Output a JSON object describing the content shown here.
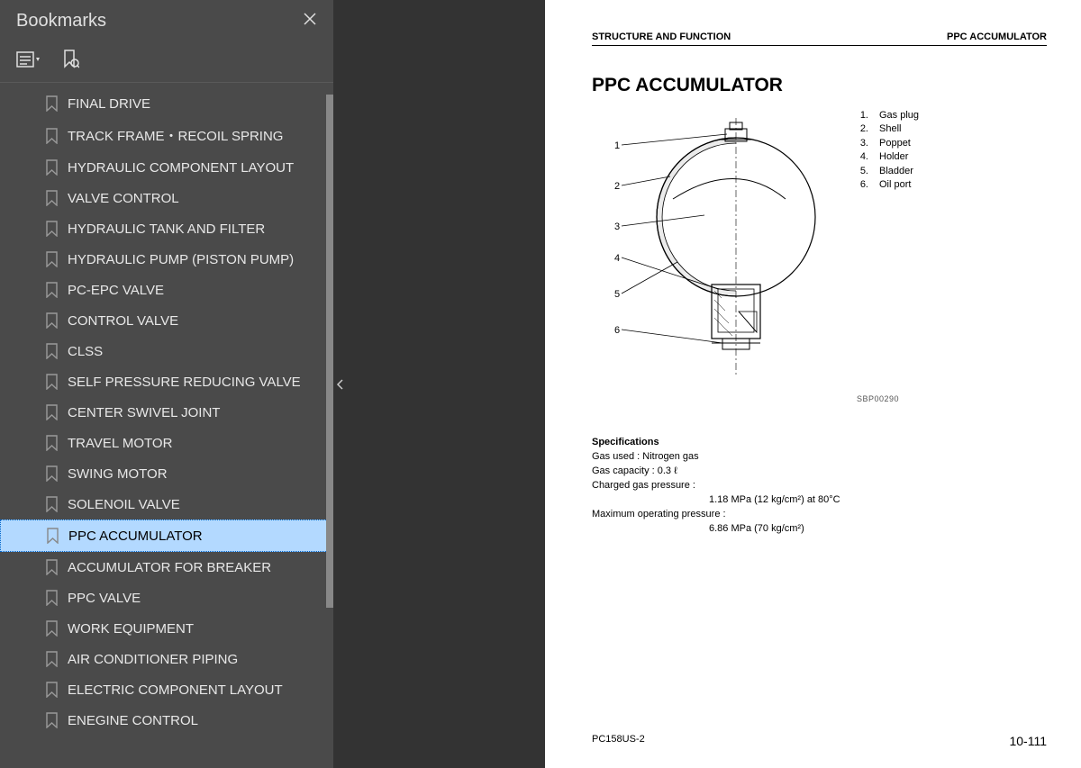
{
  "sidebar": {
    "title": "Bookmarks",
    "items": [
      {
        "label": "FINAL DRIVE",
        "selected": false
      },
      {
        "label": "TRACK FRAME・RECOIL SPRING",
        "selected": false
      },
      {
        "label": "HYDRAULIC COMPONENT LAYOUT",
        "selected": false
      },
      {
        "label": "VALVE CONTROL",
        "selected": false
      },
      {
        "label": "HYDRAULIC TANK AND FILTER",
        "selected": false
      },
      {
        "label": "HYDRAULIC PUMP (PISTON PUMP)",
        "selected": false
      },
      {
        "label": "PC-EPC VALVE",
        "selected": false
      },
      {
        "label": "CONTROL VALVE",
        "selected": false
      },
      {
        "label": "CLSS",
        "selected": false
      },
      {
        "label": "SELF PRESSURE REDUCING VALVE",
        "selected": false
      },
      {
        "label": "CENTER SWIVEL JOINT",
        "selected": false
      },
      {
        "label": "TRAVEL MOTOR",
        "selected": false
      },
      {
        "label": "SWING MOTOR",
        "selected": false
      },
      {
        "label": "SOLENOIL VALVE",
        "selected": false
      },
      {
        "label": "PPC ACCUMULATOR",
        "selected": true
      },
      {
        "label": "ACCUMULATOR FOR BREAKER",
        "selected": false
      },
      {
        "label": "PPC VALVE",
        "selected": false
      },
      {
        "label": "WORK EQUIPMENT",
        "selected": false
      },
      {
        "label": "AIR CONDITIONER PIPING",
        "selected": false
      },
      {
        "label": "ELECTRIC COMPONENT LAYOUT",
        "selected": false
      },
      {
        "label": "ENEGINE CONTROL",
        "selected": false
      }
    ]
  },
  "page": {
    "header_left": "STRUCTURE AND FUNCTION",
    "header_right": "PPC ACCUMULATOR",
    "title": "PPC ACCUMULATOR",
    "legend": [
      {
        "num": "1.",
        "label": "Gas plug"
      },
      {
        "num": "2.",
        "label": "Shell"
      },
      {
        "num": "3.",
        "label": "Poppet"
      },
      {
        "num": "4.",
        "label": "Holder"
      },
      {
        "num": "5.",
        "label": "Bladder"
      },
      {
        "num": "6.",
        "label": "Oil port"
      }
    ],
    "diagram_ref": "SBP00290",
    "specs": {
      "title": "Specifications",
      "gas_used": "Gas used : Nitrogen gas",
      "gas_capacity": "Gas capacity : 0.3 ℓ",
      "charged_label": "Charged gas pressure :",
      "charged_value": "1.18 MPa (12 kg/cm²) at 80°C",
      "max_label": "Maximum operating pressure :",
      "max_value": "6.86 MPa (70 kg/cm²)"
    },
    "footer_left": "PC158US-2",
    "footer_right": "10-111"
  },
  "colors": {
    "sidebar_bg": "#4a4a4a",
    "gap_bg": "#333333",
    "page_bg": "#ffffff",
    "selected_bg": "#b3d9ff",
    "text_light": "#e8e8e8",
    "text_dark": "#000000"
  }
}
